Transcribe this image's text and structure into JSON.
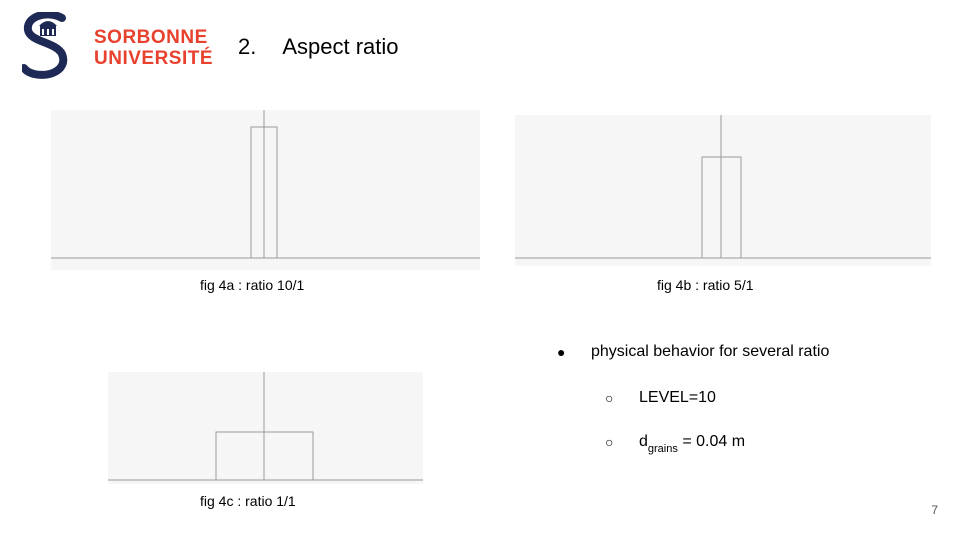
{
  "logo": {
    "line1": "SORBONNE",
    "line2": "UNIVERSITÉ",
    "icon": "sorbonne-s-logo-icon",
    "color": "#e8412e",
    "navy": "#1e2a55"
  },
  "title": {
    "number": "2.",
    "text": "Aspect ratio"
  },
  "figures": [
    {
      "caption": "fig 4a : ratio 10/1"
    },
    {
      "caption": "fig 4b : ratio 5/1"
    },
    {
      "caption": "fig 4c : ratio 1/1"
    }
  ],
  "bullets": {
    "main": {
      "marker": "●",
      "text": "physical behavior for several ratio"
    },
    "sub": [
      {
        "marker": "○",
        "text": "LEVEL=10"
      },
      {
        "marker": "○",
        "main": "d",
        "subscript": "grains",
        "rest": " = 0.04 m"
      }
    ]
  },
  "page_number": "7"
}
